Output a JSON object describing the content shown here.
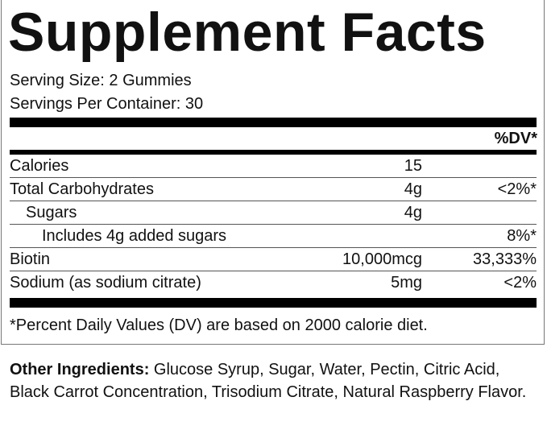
{
  "title": "Supplement Facts",
  "serving_size": "Serving Size: 2 Gummies",
  "servings_per_container": "Servings Per Container: 30",
  "dv_header": "%DV*",
  "rows": [
    {
      "name": "Calories",
      "amount": "15",
      "dv": ""
    },
    {
      "name": "Total Carbohydrates",
      "amount": "4g",
      "dv": "<2%*"
    },
    {
      "name": "Sugars",
      "amount": "4g",
      "dv": ""
    },
    {
      "name": "Includes 4g added sugars",
      "amount": "",
      "dv": "8%*"
    },
    {
      "name": "Biotin",
      "amount": "10,000mcg",
      "dv": "33,333%"
    },
    {
      "name": "Sodium (as sodium citrate)",
      "amount": "5mg",
      "dv": "<2%"
    }
  ],
  "footnote": "*Percent Daily Values (DV) are based on 2000 calorie diet.",
  "other_label": "Other Ingredients:",
  "other_text": " Glucose Syrup, Sugar, Water, Pectin, Citric Acid, Black Carrot Concentration, Trisodium Citrate, Natural Raspberry Flavor."
}
